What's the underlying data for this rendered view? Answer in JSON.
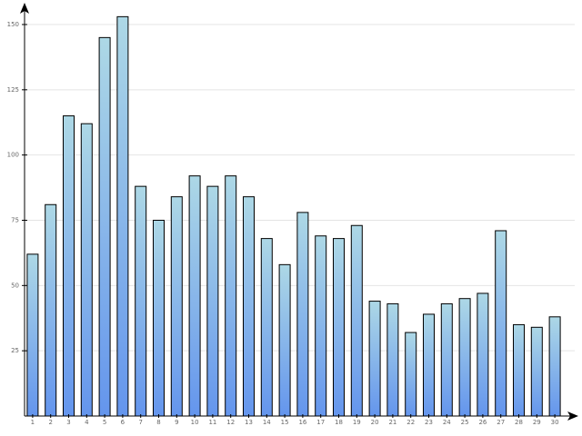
{
  "chart_data": {
    "type": "bar",
    "categories": [
      "1",
      "2",
      "3",
      "4",
      "5",
      "6",
      "7",
      "8",
      "9",
      "10",
      "11",
      "12",
      "13",
      "14",
      "15",
      "16",
      "17",
      "18",
      "19",
      "20",
      "21",
      "22",
      "23",
      "24",
      "25",
      "26",
      "27",
      "28",
      "29",
      "30"
    ],
    "values": [
      62,
      81,
      115,
      112,
      145,
      153,
      88,
      75,
      84,
      92,
      88,
      92,
      84,
      68,
      58,
      78,
      69,
      68,
      73,
      44,
      43,
      32,
      39,
      43,
      45,
      47,
      71,
      35,
      34,
      38
    ],
    "colors": [
      "#add8e6",
      "#6495ed"
    ],
    "ylim": [
      0,
      158
    ],
    "yticks": [
      25,
      50,
      75,
      100,
      125,
      150
    ],
    "grid": true
  }
}
